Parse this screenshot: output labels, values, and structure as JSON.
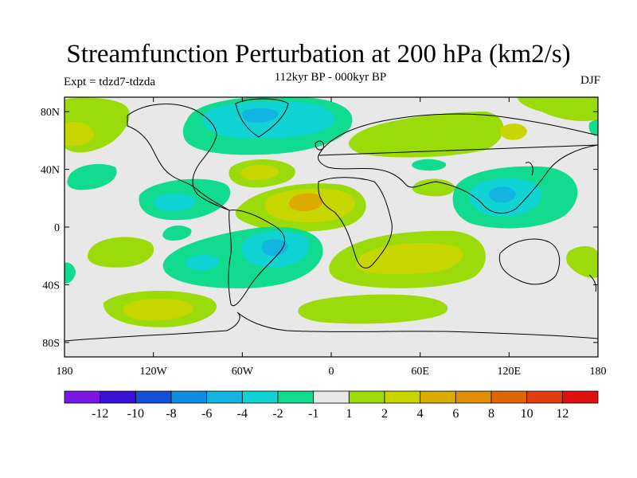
{
  "chart_data": {
    "type": "contour-map",
    "title": "Streamfunction Perturbation at 200 hPa (km2/s)",
    "subtitle": "112kyr BP - 000kyr BP",
    "left_label": "Expt = tdzd7-tdzda",
    "right_label": "DJF",
    "projection": "cylindrical equidistant",
    "xlim": [
      -180,
      180
    ],
    "ylim": [
      -90,
      90
    ],
    "lon_ticks": [
      {
        "value": -180,
        "label": "180"
      },
      {
        "value": -120,
        "label": "120W"
      },
      {
        "value": -60,
        "label": "60W"
      },
      {
        "value": 0,
        "label": "0"
      },
      {
        "value": 60,
        "label": "60E"
      },
      {
        "value": 120,
        "label": "120E"
      },
      {
        "value": 180,
        "label": "180"
      }
    ],
    "lat_ticks": [
      {
        "value": 80,
        "label": "80N"
      },
      {
        "value": 40,
        "label": "40N"
      },
      {
        "value": 0,
        "label": "0"
      },
      {
        "value": -40,
        "label": "40S"
      },
      {
        "value": -80,
        "label": "80S"
      }
    ],
    "colorbar": {
      "colors": [
        "#7b17e6",
        "#3a12d6",
        "#1250d6",
        "#0f8de0",
        "#12b5e0",
        "#10d4d4",
        "#10db8e",
        "#e8e8e8",
        "#9cdb0a",
        "#c8d600",
        "#dcab00",
        "#de8e00",
        "#e06600",
        "#e04010",
        "#e01010"
      ],
      "labels": [
        "-12",
        "-10",
        "-8",
        "-6",
        "-4",
        "-2",
        "-1",
        "1",
        "2",
        "4",
        "6",
        "8",
        "10",
        "12"
      ]
    },
    "anomaly_centers": [
      {
        "lon": -160,
        "lat": 65,
        "value": 2
      },
      {
        "lon": -120,
        "lat": 40,
        "value": -1
      },
      {
        "lon": -90,
        "lat": 12,
        "value": -2
      },
      {
        "lon": -40,
        "lat": 75,
        "value": -2
      },
      {
        "lon": -45,
        "lat": 32,
        "value": 4
      },
      {
        "lon": -15,
        "lat": 15,
        "value": 6
      },
      {
        "lon": -35,
        "lat": -15,
        "value": -4
      },
      {
        "lon": -90,
        "lat": -30,
        "value": -2
      },
      {
        "lon": -140,
        "lat": -20,
        "value": 4
      },
      {
        "lon": -145,
        "lat": -55,
        "value": 4
      },
      {
        "lon": 20,
        "lat": -60,
        "value": 2
      },
      {
        "lon": 75,
        "lat": 60,
        "value": 2
      },
      {
        "lon": 115,
        "lat": 15,
        "value": -4
      },
      {
        "lon": 70,
        "lat": -25,
        "value": 4
      },
      {
        "lon": 0,
        "lat": -65,
        "value": 2
      }
    ]
  }
}
